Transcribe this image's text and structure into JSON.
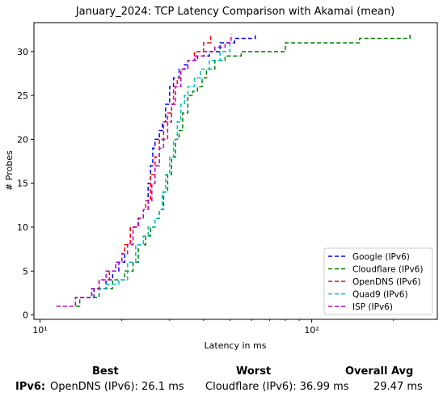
{
  "chart_data": {
    "type": "line",
    "title": "January_2024: TCP Latency Comparison with Akamai (mean)",
    "xlabel": "Latency in ms",
    "ylabel": "# Probes",
    "xscale": "log",
    "xlim": [
      9.5,
      290
    ],
    "ylim": [
      -0.5,
      33.3
    ],
    "xticks": [
      {
        "value": 10,
        "label": "10¹"
      },
      {
        "value": 100,
        "label": "10²"
      }
    ],
    "yticks": [
      0,
      5,
      10,
      15,
      20,
      25,
      30
    ],
    "grid": false,
    "legend_position": "lower-right",
    "line_style": "dashed",
    "series": [
      {
        "name": "Google (IPv6)",
        "color": "#0000ff",
        "x": [
          11.5,
          13.5,
          15.8,
          17.5,
          18.5,
          19.5,
          20.5,
          21.5,
          23.0,
          24.0,
          25.0,
          25.5,
          26.0,
          26.5,
          27.5,
          28.2,
          29.0,
          30.0,
          31.0,
          32.5,
          34.0,
          35.0,
          36.0,
          38.0,
          42.0,
          46.0,
          52.0,
          62.0
        ],
        "y": [
          1,
          2,
          3,
          4,
          5,
          6,
          8,
          10,
          11,
          12,
          15,
          17,
          19,
          20,
          21,
          22,
          24,
          26,
          27,
          28,
          28.5,
          29,
          29,
          29.5,
          30,
          31,
          31.5,
          32
        ]
      },
      {
        "name": "Cloudflare (IPv6)",
        "color": "#008000",
        "x": [
          11.5,
          14.0,
          16.5,
          18.5,
          20.5,
          22.0,
          23.0,
          24.5,
          25.5,
          26.5,
          27.5,
          28.5,
          29.5,
          30.5,
          31.5,
          32.5,
          33.5,
          35.0,
          36.5,
          38.0,
          39.5,
          41.0,
          44.0,
          48.0,
          55.0,
          80.0,
          150.0,
          230.0
        ],
        "y": [
          1,
          2,
          3,
          4,
          5,
          6,
          8,
          9,
          10,
          11,
          12,
          14,
          16,
          18,
          20,
          21,
          23,
          25,
          25.5,
          26,
          27,
          28,
          29,
          29.5,
          30,
          31,
          31.5,
          32
        ]
      },
      {
        "name": "OpenDNS (IPv6)",
        "color": "#ff0000",
        "x": [
          11.5,
          13.5,
          15.5,
          16.5,
          18.0,
          19.0,
          20.0,
          20.5,
          21.5,
          23.0,
          24.0,
          24.5,
          25.5,
          26.5,
          27.5,
          28.5,
          29.5,
          30.5,
          31.0,
          32.0,
          33.0,
          35.0,
          37.0,
          40.0,
          42.5
        ],
        "y": [
          1,
          2,
          3,
          4,
          5,
          6,
          7,
          8,
          10,
          11,
          12,
          13,
          16,
          18,
          20,
          22,
          23,
          24,
          26,
          27,
          28,
          29,
          30,
          31,
          32
        ]
      },
      {
        "name": "Quad9 (IPv6)",
        "color": "#00bfbf",
        "x": [
          11.5,
          13.5,
          15.5,
          17.5,
          19.5,
          21.0,
          22.5,
          24.0,
          25.0,
          26.5,
          27.5,
          28.2,
          29.0,
          30.0,
          31.0,
          32.0,
          33.0,
          34.0,
          35.0,
          37.0,
          39.0,
          42.0,
          46.0,
          50.0
        ],
        "y": [
          1,
          2,
          3,
          3.5,
          4,
          6,
          8,
          9,
          10,
          11,
          12,
          14,
          16,
          18,
          20,
          22,
          24,
          25,
          26,
          27,
          28,
          29,
          30,
          31
        ]
      },
      {
        "name": "ISP (IPv6)",
        "color": "#bf00bf",
        "x": [
          11.5,
          13.5,
          15.5,
          16.5,
          17.5,
          19.0,
          20.0,
          21.0,
          22.0,
          23.0,
          24.0,
          25.0,
          25.8,
          26.5,
          27.5,
          28.5,
          29.5,
          30.5,
          31.5,
          33.0,
          35.0,
          37.0,
          40.0,
          44.0,
          48.0,
          50.5
        ],
        "y": [
          1,
          2,
          3,
          4,
          5,
          6,
          7,
          8,
          10,
          11,
          12,
          13,
          15,
          17,
          19,
          20,
          22,
          24,
          26,
          28,
          29,
          29.5,
          30,
          30.5,
          31,
          32
        ]
      }
    ]
  },
  "summary": {
    "best_header": "Best",
    "worst_header": "Worst",
    "avg_header": "Overall Avg",
    "row_label": "IPv6:",
    "best_value": "OpenDNS (IPv6): 26.1 ms",
    "worst_value": "Cloudflare (IPv6): 36.99 ms",
    "avg_value": "29.47 ms"
  }
}
